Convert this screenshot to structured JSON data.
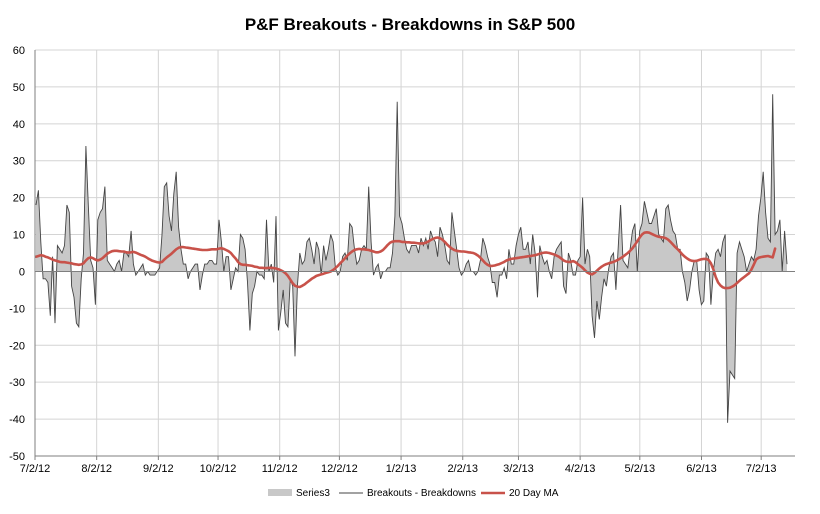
{
  "chart_data": {
    "type": "area",
    "title": "P&F Breakouts - Breakdowns in S&P 500",
    "xlabel": "",
    "ylabel": "",
    "ylim": [
      -50,
      60
    ],
    "yticks": [
      60,
      50,
      40,
      30,
      20,
      10,
      0,
      -10,
      -20,
      -30,
      -40,
      -50
    ],
    "xticks": [
      "7/2/12",
      "8/2/12",
      "9/2/12",
      "10/2/12",
      "11/2/12",
      "12/2/12",
      "1/2/13",
      "2/2/13",
      "3/2/13",
      "4/2/13",
      "5/2/13",
      "6/2/13",
      "7/2/13"
    ],
    "x_start": "7/2/12",
    "x_end": "7/19/13",
    "grid": true,
    "legend_position": "bottom",
    "colors": {
      "area": "#c8c8c8",
      "line": "#444444",
      "ma": "#c8524a",
      "axis": "#7f7f7f",
      "grid": "#d4d4d4"
    },
    "series": [
      {
        "name": "Series3",
        "style": "area",
        "values": [
          18,
          22,
          8,
          -2,
          -2,
          -3,
          -12,
          4,
          -14,
          7,
          6,
          5,
          7,
          18,
          16,
          -4,
          -7,
          -14,
          -15,
          -2,
          5,
          34,
          18,
          3,
          1,
          -9,
          14,
          16,
          17,
          23,
          3,
          2,
          1,
          0,
          2,
          3,
          0,
          5,
          5,
          4,
          11,
          2,
          -1,
          0,
          1,
          2,
          -1,
          0,
          -1,
          -1,
          -1,
          0,
          1,
          10,
          23,
          24,
          15,
          11,
          21,
          27,
          12,
          6,
          2,
          2,
          -2,
          0,
          1,
          2,
          2,
          -5,
          -1,
          2,
          2,
          3,
          3,
          2,
          2,
          14,
          8,
          0,
          4,
          4,
          -5,
          -2,
          1,
          0,
          10,
          9,
          6,
          -3,
          -16,
          -6,
          -4,
          0,
          -1,
          -1,
          -2,
          14,
          0,
          2,
          -3,
          15,
          -16,
          -11,
          -5,
          -14,
          -15,
          -2,
          -4,
          -23,
          -4,
          5,
          2,
          3,
          8,
          9,
          6,
          2,
          8,
          6,
          -1,
          7,
          3,
          6,
          10,
          8,
          1,
          -1,
          0,
          4,
          5,
          3,
          13,
          12,
          6,
          2,
          3,
          6,
          7,
          6,
          23,
          8,
          -1,
          1,
          2,
          -2,
          0,
          0,
          1,
          1,
          5,
          15,
          46,
          15,
          13,
          9,
          6,
          5,
          7,
          7,
          7,
          5,
          9,
          7,
          9,
          6,
          11,
          9,
          8,
          4,
          12,
          10,
          7,
          3,
          2,
          16,
          11,
          6,
          1,
          -1,
          0,
          2,
          3,
          0,
          0,
          -1,
          0,
          3,
          9,
          7,
          4,
          2,
          -3,
          -3,
          -7,
          -1,
          -1,
          1,
          -2,
          6,
          2,
          2,
          7,
          10,
          12,
          6,
          6,
          8,
          2,
          10,
          5,
          -7,
          7,
          4,
          2,
          3,
          0,
          -2,
          4,
          6,
          7,
          8,
          -4,
          -6,
          5,
          3,
          -1,
          -1,
          3,
          4,
          20,
          2,
          6,
          4,
          -12,
          -18,
          -8,
          -13,
          -7,
          -2,
          -4,
          1,
          4,
          5,
          -5,
          7,
          18,
          3,
          2,
          1,
          6,
          11,
          13,
          0,
          11,
          13,
          19,
          16,
          13,
          13,
          15,
          17,
          10,
          9,
          8,
          17,
          18,
          14,
          11,
          10,
          6,
          6,
          0,
          -3,
          -8,
          -5,
          0,
          3,
          3,
          -5,
          -9,
          -8,
          5,
          4,
          -9,
          0,
          5,
          6,
          4,
          8,
          10,
          -41,
          -27,
          -28,
          -29,
          5,
          8,
          6,
          4,
          0,
          2,
          4,
          3,
          6,
          15,
          20,
          27,
          16,
          9,
          8,
          48,
          10,
          11,
          14,
          0,
          11,
          2
        ]
      },
      {
        "name": "Breakouts - Breakdowns",
        "style": "line",
        "same_values_as": "Series3"
      },
      {
        "name": "20 Day MA",
        "style": "line",
        "values": [
          4,
          4.2,
          4.4,
          4.3,
          4,
          3.8,
          3.5,
          3.2,
          3,
          2.8,
          2.6,
          2.5,
          2.5,
          2.4,
          2.3,
          2.2,
          2,
          1.9,
          1.8,
          1.9,
          2.2,
          3,
          3.6,
          3.8,
          3.6,
          3.2,
          3,
          3.2,
          3.6,
          4.2,
          4.8,
          5.2,
          5.5,
          5.6,
          5.6,
          5.5,
          5.4,
          5.4,
          5.2,
          5.1,
          5.2,
          5.3,
          5.1,
          4.8,
          4.5,
          4.3,
          4,
          3.6,
          3.2,
          2.9,
          2.7,
          2.5,
          2.4,
          2.6,
          3.2,
          3.8,
          4.3,
          4.8,
          5.4,
          6,
          6.4,
          6.6,
          6.6,
          6.5,
          6.4,
          6.3,
          6.2,
          6.1,
          6,
          5.9,
          5.8,
          5.8,
          5.8,
          5.9,
          6,
          6,
          6,
          6.2,
          6.3,
          6.1,
          5.8,
          5.5,
          5,
          4.2,
          3.5,
          2.6,
          2,
          1.8,
          1.8,
          1.7,
          1.6,
          1.5,
          1.3,
          1.2,
          1,
          1,
          0.9,
          0.9,
          1,
          1,
          0.9,
          0.8,
          0.6,
          0.3,
          0,
          -0.5,
          -1.2,
          -2.2,
          -3.2,
          -3.9,
          -4.1,
          -4.2,
          -3.9,
          -3.5,
          -3,
          -2.5,
          -2,
          -1.6,
          -1.2,
          -1,
          -0.8,
          -0.6,
          -0.4,
          -0.2,
          0,
          0.4,
          0.9,
          1.5,
          2.2,
          2.9,
          3.6,
          4.3,
          4.9,
          5.4,
          5.8,
          6,
          6.1,
          6,
          6,
          5.9,
          5.8,
          5.6,
          5.4,
          5.2,
          5.2,
          5.4,
          5.8,
          6.5,
          7.2,
          7.8,
          8.1,
          8.2,
          8.2,
          8.2,
          8,
          8,
          7.9,
          7.9,
          7.8,
          7.8,
          7.7,
          7.6,
          7.6,
          7.6,
          7.8,
          8.1,
          8.5,
          8.8,
          9.1,
          9.2,
          9,
          8.6,
          8,
          7.3,
          6.7,
          6.2,
          5.8,
          5.6,
          5.5,
          5.4,
          5.4,
          5.3,
          5.2,
          5.1,
          5,
          4.7,
          4.3,
          3.7,
          3,
          2.3,
          1.8,
          1.5,
          1.5,
          1.6,
          1.8,
          2,
          2.3,
          2.6,
          3,
          3.2,
          3.4,
          3.5,
          3.6,
          3.7,
          3.8,
          3.9,
          4,
          4.1,
          4.2,
          4.3,
          4.4,
          4.6,
          4.8,
          5,
          5.1,
          5.1,
          5,
          4.8,
          4.6,
          4.3,
          4,
          3.5,
          3,
          2.7,
          2.6,
          2.6,
          2.8,
          2.5,
          2,
          1.5,
          1,
          0.3,
          -0.3,
          -0.6,
          -0.8,
          -0.4,
          0.2,
          0.8,
          1.3,
          1.7,
          2,
          2.2,
          2.4,
          2.6,
          2.9,
          3.2,
          3.6,
          4,
          4.5,
          5,
          5.6,
          6.3,
          7.2,
          8.2,
          9.2,
          10,
          10.5,
          10.6,
          10.5,
          10.2,
          9.9,
          9.6,
          9.4,
          9.3,
          9.2,
          9,
          8.6,
          8,
          7.3,
          6.6,
          6,
          5.3,
          4.6,
          4,
          3.5,
          3.1,
          2.9,
          2.8,
          2.9,
          3.1,
          3.3,
          3.4,
          3.4,
          3.1,
          2.2,
          0.6,
          -1.5,
          -3,
          -3.8,
          -4.3,
          -4.5,
          -4.5,
          -4.4,
          -4.1,
          -3.7,
          -3.1,
          -2.5,
          -2,
          -1.5,
          -1,
          -0.5,
          0.5,
          1.8,
          3.2,
          3.7,
          3.9,
          4,
          4.1,
          4.2,
          4,
          3.8,
          6.2
        ]
      }
    ],
    "legend": [
      "Series3",
      "Breakouts - Breakdowns",
      "20 Day MA"
    ]
  }
}
